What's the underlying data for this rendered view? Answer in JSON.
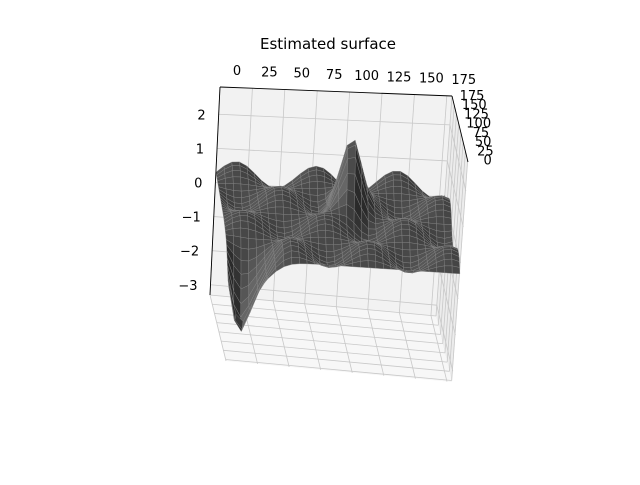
{
  "chart_data": {
    "type": "surface",
    "title": "Estimated surface",
    "xlabel": "",
    "ylabel": "",
    "zlabel": "",
    "x_ticks": [
      0,
      25,
      50,
      75,
      100,
      125,
      150,
      175
    ],
    "y_ticks": [
      0,
      25,
      50,
      75,
      100,
      125,
      150,
      175
    ],
    "z_ticks": [
      2,
      1,
      0,
      -1,
      -2,
      -3
    ],
    "x_tick_labels": [
      "0",
      "25",
      "50",
      "75",
      "100",
      "125",
      "150",
      "175"
    ],
    "y_tick_labels": [
      "0",
      "25",
      "50",
      "75",
      "100",
      "125",
      "150",
      "175"
    ],
    "z_tick_labels": [
      "2",
      "1",
      "0",
      "−1",
      "−2",
      "−3"
    ],
    "xlim": [
      0,
      179
    ],
    "ylim": [
      0,
      179
    ],
    "zlim": [
      -3.3,
      2.8
    ],
    "grid": true,
    "colors": {
      "surface": "#4a4a4a",
      "surface_dark": "#2a2a2a",
      "surface_light": "#6a6a6a",
      "pane": "#f2f2f2",
      "gridline": "#c8c8c8"
    }
  }
}
